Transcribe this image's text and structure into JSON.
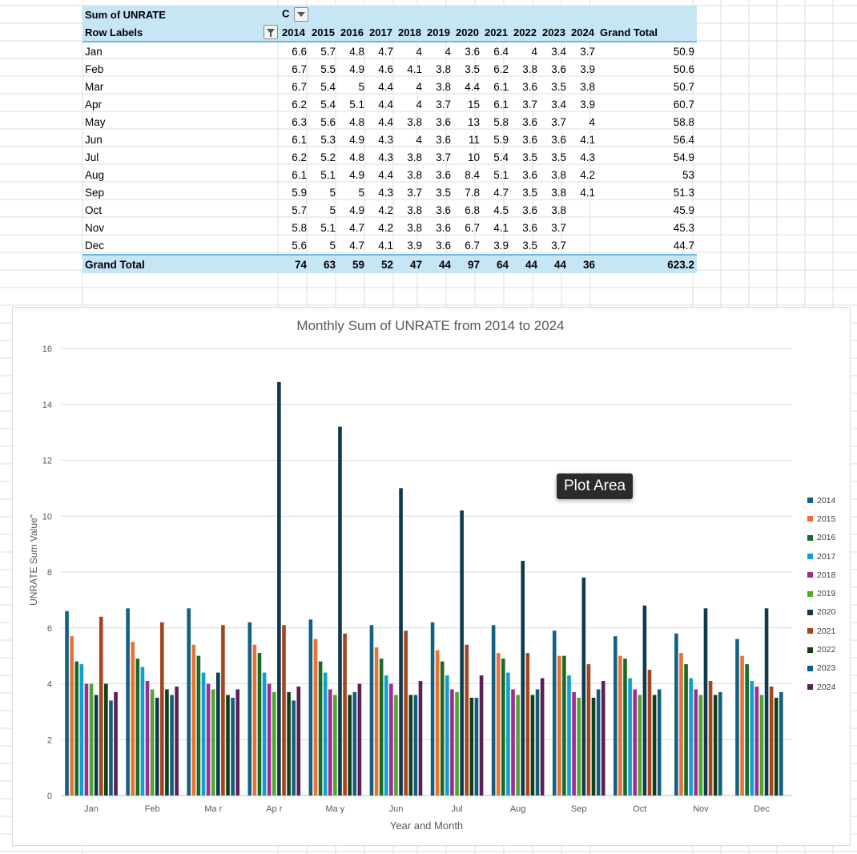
{
  "pivot": {
    "header": {
      "sum_label": "Sum of UNRATE",
      "col_labels_stub": "C",
      "row_labels": "Row Labels",
      "years": [
        "2014",
        "2015",
        "2016",
        "2017",
        "2018",
        "2019",
        "2020",
        "2021",
        "2022",
        "2023",
        "2024"
      ],
      "grand_total": "Grand Total"
    },
    "rows": [
      {
        "label": "Jan",
        "values": [
          "6.6",
          "5.7",
          "4.8",
          "4.7",
          "4",
          "4",
          "3.6",
          "6.4",
          "4",
          "3.4",
          "3.7"
        ],
        "total": "50.9"
      },
      {
        "label": "Feb",
        "values": [
          "6.7",
          "5.5",
          "4.9",
          "4.6",
          "4.1",
          "3.8",
          "3.5",
          "6.2",
          "3.8",
          "3.6",
          "3.9"
        ],
        "total": "50.6"
      },
      {
        "label": "Mar",
        "values": [
          "6.7",
          "5.4",
          "5",
          "4.4",
          "4",
          "3.8",
          "4.4",
          "6.1",
          "3.6",
          "3.5",
          "3.8"
        ],
        "total": "50.7"
      },
      {
        "label": "Apr",
        "values": [
          "6.2",
          "5.4",
          "5.1",
          "4.4",
          "4",
          "3.7",
          "15",
          "6.1",
          "3.7",
          "3.4",
          "3.9"
        ],
        "total": "60.7"
      },
      {
        "label": "May",
        "values": [
          "6.3",
          "5.6",
          "4.8",
          "4.4",
          "3.8",
          "3.6",
          "13",
          "5.8",
          "3.6",
          "3.7",
          "4"
        ],
        "total": "58.8"
      },
      {
        "label": "Jun",
        "values": [
          "6.1",
          "5.3",
          "4.9",
          "4.3",
          "4",
          "3.6",
          "11",
          "5.9",
          "3.6",
          "3.6",
          "4.1"
        ],
        "total": "56.4"
      },
      {
        "label": "Jul",
        "values": [
          "6.2",
          "5.2",
          "4.8",
          "4.3",
          "3.8",
          "3.7",
          "10",
          "5.4",
          "3.5",
          "3.5",
          "4.3"
        ],
        "total": "54.9"
      },
      {
        "label": "Aug",
        "values": [
          "6.1",
          "5.1",
          "4.9",
          "4.4",
          "3.8",
          "3.6",
          "8.4",
          "5.1",
          "3.6",
          "3.8",
          "4.2"
        ],
        "total": "53"
      },
      {
        "label": "Sep",
        "values": [
          "5.9",
          "5",
          "5",
          "4.3",
          "3.7",
          "3.5",
          "7.8",
          "4.7",
          "3.5",
          "3.8",
          "4.1"
        ],
        "total": "51.3"
      },
      {
        "label": "Oct",
        "values": [
          "5.7",
          "5",
          "4.9",
          "4.2",
          "3.8",
          "3.6",
          "6.8",
          "4.5",
          "3.6",
          "3.8",
          ""
        ],
        "total": "45.9"
      },
      {
        "label": "Nov",
        "values": [
          "5.8",
          "5.1",
          "4.7",
          "4.2",
          "3.8",
          "3.6",
          "6.7",
          "4.1",
          "3.6",
          "3.7",
          ""
        ],
        "total": "45.3"
      },
      {
        "label": "Dec",
        "values": [
          "5.6",
          "5",
          "4.7",
          "4.1",
          "3.9",
          "3.6",
          "6.7",
          "3.9",
          "3.5",
          "3.7",
          ""
        ],
        "total": "44.7"
      }
    ],
    "grand_total_row": {
      "label": "Grand Total",
      "values": [
        "74",
        "63",
        "59",
        "52",
        "47",
        "44",
        "97",
        "64",
        "44",
        "44",
        "36"
      ],
      "total": "623.2"
    }
  },
  "tooltip": "Plot Area",
  "chart_data": {
    "type": "bar",
    "title": "Monthly Sum of UNRATE from 2014 to 2024",
    "xlabel": "Year and Month",
    "ylabel": "UNRATE Sum Value\"",
    "ylim": [
      0,
      16
    ],
    "yticks": [
      "0",
      "2",
      "4",
      "6",
      "8",
      "10",
      "12",
      "14",
      "16"
    ],
    "grid": true,
    "legend_position": "right",
    "categories": [
      "Jan",
      "Feb",
      "Mar",
      "Apr",
      "May",
      "Jun",
      "Jul",
      "Aug",
      "Sep",
      "Oct",
      "Nov",
      "Dec"
    ],
    "category_tick_labels": [
      "Jan",
      "Feb",
      "Ma r",
      "Ap r",
      "Ma y",
      "Jun",
      "Jul",
      "Aug",
      "Sep",
      "Oct",
      "Nov",
      "Dec"
    ],
    "series": [
      {
        "name": "2014",
        "color": "#156082",
        "values": [
          6.6,
          6.7,
          6.7,
          6.2,
          6.3,
          6.1,
          6.2,
          6.1,
          5.9,
          5.7,
          5.8,
          5.6
        ]
      },
      {
        "name": "2015",
        "color": "#e97132",
        "values": [
          5.7,
          5.5,
          5.4,
          5.4,
          5.6,
          5.3,
          5.2,
          5.1,
          5.0,
          5.0,
          5.1,
          5.0
        ]
      },
      {
        "name": "2016",
        "color": "#196b24",
        "values": [
          4.8,
          4.9,
          5.0,
          5.1,
          4.8,
          4.9,
          4.8,
          4.9,
          5.0,
          4.9,
          4.7,
          4.7
        ]
      },
      {
        "name": "2017",
        "color": "#0f9ed5",
        "values": [
          4.7,
          4.6,
          4.4,
          4.4,
          4.4,
          4.3,
          4.3,
          4.4,
          4.3,
          4.2,
          4.2,
          4.1
        ]
      },
      {
        "name": "2018",
        "color": "#a02b93",
        "values": [
          4.0,
          4.1,
          4.0,
          4.0,
          3.8,
          4.0,
          3.8,
          3.8,
          3.7,
          3.8,
          3.8,
          3.9
        ]
      },
      {
        "name": "2019",
        "color": "#4ea72e",
        "values": [
          4.0,
          3.8,
          3.8,
          3.7,
          3.6,
          3.6,
          3.7,
          3.6,
          3.5,
          3.6,
          3.6,
          3.6
        ]
      },
      {
        "name": "2020",
        "color": "#0e3a4e",
        "values": [
          3.6,
          3.5,
          4.4,
          14.8,
          13.2,
          11.0,
          10.2,
          8.4,
          7.8,
          6.8,
          6.7,
          6.7
        ]
      },
      {
        "name": "2021",
        "color": "#a5441d",
        "values": [
          6.4,
          6.2,
          6.1,
          6.1,
          5.8,
          5.9,
          5.4,
          5.1,
          4.7,
          4.5,
          4.1,
          3.9
        ]
      },
      {
        "name": "2022",
        "color": "#113f17",
        "values": [
          4.0,
          3.8,
          3.6,
          3.7,
          3.6,
          3.6,
          3.5,
          3.6,
          3.5,
          3.6,
          3.6,
          3.5
        ]
      },
      {
        "name": "2023",
        "color": "#125e7f",
        "values": [
          3.4,
          3.6,
          3.5,
          3.4,
          3.7,
          3.6,
          3.5,
          3.8,
          3.8,
          3.8,
          3.7,
          3.7
        ]
      },
      {
        "name": "2024",
        "color": "#5b1e55",
        "values": [
          3.7,
          3.9,
          3.8,
          3.9,
          4.0,
          4.1,
          4.3,
          4.2,
          4.1,
          null,
          null,
          null
        ]
      }
    ]
  }
}
